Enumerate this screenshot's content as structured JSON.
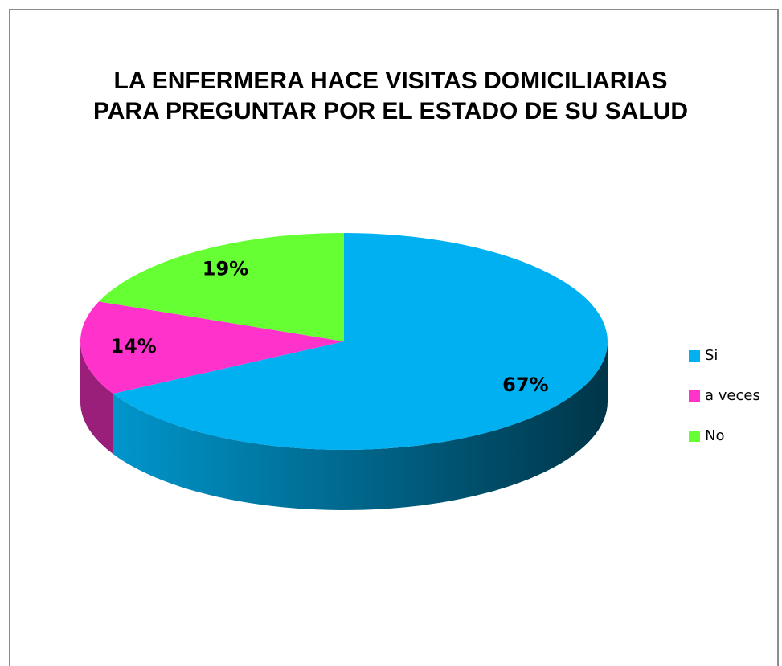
{
  "chart_data": {
    "type": "pie",
    "title": "LA ENFERMERA HACE VISITAS DOMICILIARIAS PARA PREGUNTAR POR EL ESTADO DE SU SALUD",
    "categories": [
      "Si",
      "a veces",
      "No"
    ],
    "values": [
      67,
      14,
      19
    ],
    "value_labels": [
      "67%",
      "14%",
      "19%"
    ],
    "colors": [
      "#00b0f0",
      "#ff33cc",
      "#66ff33"
    ],
    "legend": "right"
  }
}
